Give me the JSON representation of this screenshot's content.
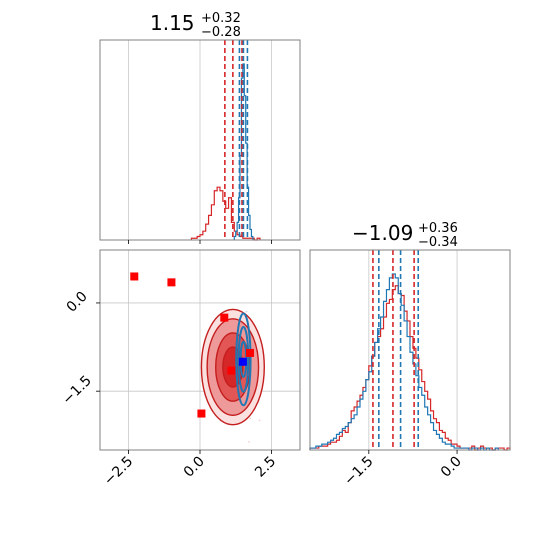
{
  "chart_data": [
    {
      "panel": "histogram-param-1",
      "type": "histogram",
      "title": {
        "value": "1.15",
        "upper": "+0.32",
        "lower": "−0.28"
      },
      "xlim": [
        -3.5,
        3.5
      ],
      "grid": true,
      "quantile_lines": {
        "red": [
          0.87,
          1.15,
          1.47
        ],
        "blue": [
          1.38,
          1.52,
          1.66
        ]
      },
      "series": [
        {
          "color": "#d62728",
          "bins_start": -0.3,
          "bin_width": 0.1,
          "counts": [
            1,
            1,
            2,
            3,
            5,
            9,
            14,
            20,
            28,
            30,
            28,
            22,
            18,
            24,
            10,
            5,
            3,
            2,
            1,
            1,
            1,
            1,
            0,
            1
          ]
        },
        {
          "color": "#1f77b4",
          "bins_start": 1.2,
          "bin_width": 0.05,
          "counts": [
            2,
            5,
            10,
            24,
            48,
            92,
            100,
            82,
            55,
            30,
            14,
            6,
            2
          ]
        }
      ]
    },
    {
      "panel": "histogram-param-2",
      "type": "histogram",
      "title": {
        "value": "−1.09",
        "upper": "+0.36",
        "lower": "−0.34"
      },
      "xticks": [
        "−1.5",
        "0.0"
      ],
      "xtick_values": [
        -1.5,
        0.0
      ],
      "xlim": [
        -2.5,
        0.9
      ],
      "grid": true,
      "quantile_lines": {
        "red": [
          -1.43,
          -1.09,
          -0.73
        ],
        "blue": [
          -1.33,
          -0.96,
          -0.66
        ]
      },
      "series": [
        {
          "color": "#d62728",
          "bins_start": -2.5,
          "bin_width": 0.05,
          "counts": [
            1,
            1,
            1,
            2,
            2,
            2,
            3,
            4,
            4,
            5,
            7,
            10,
            9,
            14,
            20,
            22,
            25,
            28,
            32,
            36,
            43,
            48,
            55,
            58,
            62,
            68,
            75,
            77,
            82,
            84,
            80,
            79,
            71,
            66,
            58,
            52,
            47,
            41,
            35,
            30,
            26,
            20,
            16,
            14,
            10,
            9,
            6,
            5,
            3,
            3,
            2,
            1,
            1,
            1,
            1,
            2,
            0,
            1,
            2,
            1,
            1,
            1,
            0,
            1,
            1,
            1,
            0,
            1
          ]
        },
        {
          "color": "#1f77b4",
          "bins_start": -2.5,
          "bin_width": 0.05,
          "counts": [
            1,
            1,
            2,
            2,
            3,
            3,
            4,
            5,
            6,
            8,
            9,
            11,
            12,
            14,
            16,
            18,
            22,
            26,
            30,
            36,
            40,
            48,
            55,
            62,
            68,
            76,
            82,
            88,
            90,
            88,
            80,
            74,
            66,
            58,
            50,
            44,
            38,
            32,
            28,
            22,
            18,
            14,
            10,
            8,
            6,
            4,
            3,
            3,
            2,
            1,
            1,
            1,
            1,
            1,
            0,
            1,
            1,
            0,
            1,
            0,
            1,
            0,
            0,
            1
          ]
        }
      ]
    },
    {
      "panel": "joint-param-1-vs-param-2",
      "type": "scatter",
      "xticks": [
        "−2.5",
        "0.0",
        "2.5"
      ],
      "xtick_values": [
        -2.5,
        0.0,
        2.5
      ],
      "yticks": [
        "0.0",
        "−1.5"
      ],
      "ytick_values": [
        0.0,
        -1.5
      ],
      "xlim": [
        -3.5,
        3.5
      ],
      "ylim": [
        -2.5,
        0.9
      ],
      "grid": true,
      "red_points": [
        [
          -2.3,
          0.45
        ],
        [
          -1.0,
          0.35
        ],
        [
          0.85,
          -0.25
        ],
        [
          1.75,
          -0.85
        ],
        [
          1.1,
          -1.15
        ],
        [
          0.05,
          -1.88
        ]
      ],
      "blue_points": [
        [
          1.5,
          -1.0
        ]
      ],
      "red_contours": {
        "center": [
          1.15,
          -1.09
        ],
        "levels": [
          {
            "rx": 0.35,
            "ry": 0.34
          },
          {
            "rx": 0.6,
            "ry": 0.58
          },
          {
            "rx": 0.9,
            "ry": 0.82
          },
          {
            "rx": 1.1,
            "ry": 0.98
          }
        ]
      },
      "blue_contours": {
        "center": [
          1.52,
          -0.96
        ],
        "levels": [
          {
            "rx": 0.1,
            "ry": 0.3
          },
          {
            "rx": 0.17,
            "ry": 0.55
          },
          {
            "rx": 0.25,
            "ry": 0.78
          }
        ]
      }
    }
  ]
}
